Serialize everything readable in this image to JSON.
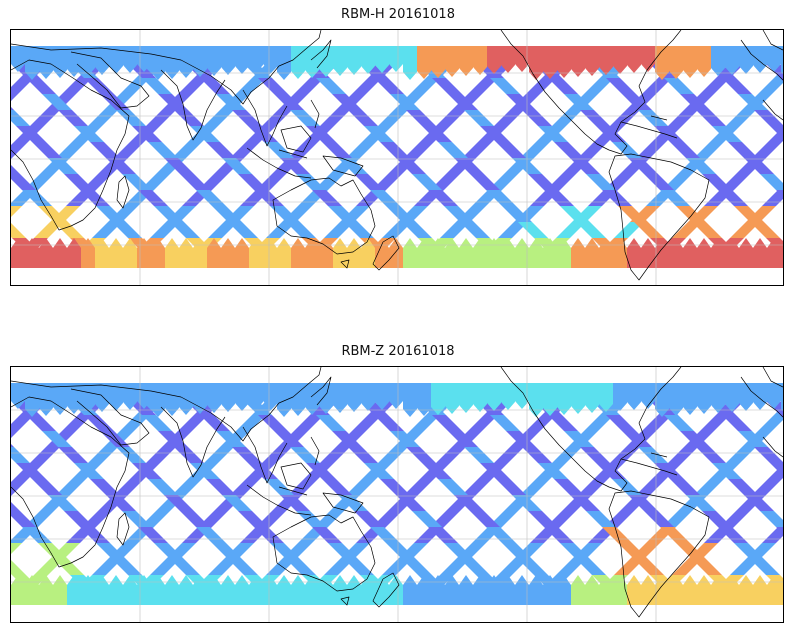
{
  "panels": [
    {
      "title": "RBM-H 20161018",
      "field": "H",
      "colors": {
        "low": "#6a6af0",
        "mid_low": "#5aa8f7",
        "mid": "#5be0ee",
        "mid_high": "#b8f080",
        "high": "#f8d060",
        "higher": "#f59a55",
        "max": "#e06060"
      }
    },
    {
      "title": "RBM-Z 20161018",
      "field": "Z",
      "colors": {
        "low": "#6a6af0",
        "mid_low": "#5aa8f7",
        "mid": "#5be0ee",
        "mid_high": "#b8f080",
        "high": "#f8d060",
        "higher": "#f59a55",
        "max": "#e06060"
      }
    }
  ],
  "map": {
    "projection": "cylindrical",
    "land_outline_color": "#000000",
    "grid_color": "#bdbdbd",
    "gridlines": true
  }
}
